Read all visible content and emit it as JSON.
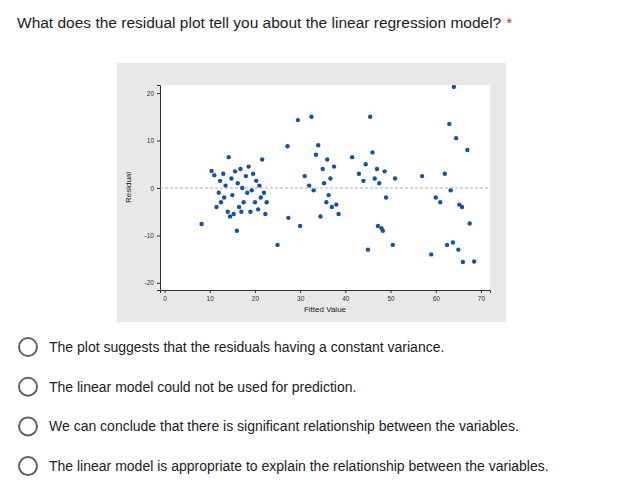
{
  "question": "What does the residual plot tell you about the linear regression model?",
  "required_mark": "*",
  "options": [
    "The plot suggests that the residuals having a constant variance.",
    "The linear model could not be used for prediction.",
    "We can conclude that there is significant relationship between the variables.",
    "The linear model is appropriate to explain the relationship between the variables."
  ],
  "chart_data": {
    "type": "scatter",
    "x_label": "Fitted Value",
    "y_label": "Residual",
    "color": "#1552a3",
    "marker": "circle",
    "hline": 0,
    "x": [
      8.2,
      10.4,
      11.0,
      11.5,
      12.0,
      12.3,
      12.5,
      13.0,
      13.2,
      13.5,
      14.0,
      14.2,
      14.5,
      14.8,
      15.0,
      15.3,
      15.6,
      16.0,
      16.2,
      16.5,
      16.8,
      17.0,
      17.2,
      17.5,
      18.0,
      18.3,
      18.6,
      19.0,
      19.3,
      19.6,
      20.0,
      20.3,
      20.7,
      21.0,
      21.3,
      21.6,
      22.0,
      22.3,
      22.6,
      25.0,
      27.2,
      27.4,
      29.5,
      30.0,
      31.0,
      32.0,
      32.5,
      33.0,
      33.5,
      34.0,
      34.5,
      35.0,
      35.3,
      35.8,
      36.0,
      36.3,
      36.7,
      37.0,
      37.5,
      38.0,
      38.5,
      41.5,
      43.0,
      44.0,
      44.5,
      45.0,
      45.5,
      46.0,
      46.5,
      47.0,
      47.2,
      47.5,
      48.0,
      48.3,
      48.7,
      49.0,
      50.5,
      51.0,
      57.0,
      59.0,
      60.0,
      61.0,
      62.0,
      62.5,
      63.0,
      63.3,
      63.8,
      64.0,
      64.5,
      65.0,
      65.2,
      65.8,
      66.0,
      67.0,
      67.5,
      68.5
    ],
    "values": [
      -7.6,
      3.6,
      2.7,
      -4,
      -1,
      1.5,
      -3,
      3,
      -2,
      0.5,
      -5,
      6.5,
      -6,
      2,
      -1.5,
      -5.5,
      3.5,
      -9,
      1,
      -4,
      4,
      -5,
      0,
      -3,
      2.5,
      -1,
      4.5,
      -5,
      -0.5,
      3,
      -3,
      1.5,
      -4.5,
      0.5,
      -2,
      6,
      -1,
      -5.5,
      -3,
      -12,
      8.8,
      -6.3,
      14.3,
      -8,
      2.5,
      0.5,
      15,
      -0.5,
      7,
      9,
      -6,
      4,
      1,
      -3,
      6,
      -1.5,
      2,
      -4,
      4.5,
      -3.5,
      -5.5,
      6.5,
      3,
      1.5,
      5,
      -13,
      15,
      7.5,
      2,
      4,
      -8,
      1,
      -8.5,
      -9,
      3.5,
      -2,
      -12,
      2,
      2.5,
      -14,
      -2,
      -3,
      3,
      -12,
      13.5,
      -0.5,
      -11.5,
      21.3,
      10.5,
      -13,
      -3.5,
      -4,
      -15.6,
      8,
      -7.5,
      -15.5
    ],
    "xlim": [
      -1,
      72
    ],
    "ylim": [
      -21.5,
      21.7
    ],
    "xticks": [
      0,
      10,
      20,
      30,
      40,
      50,
      60,
      70
    ],
    "yticks": [
      -20,
      -10,
      0,
      10,
      20
    ]
  }
}
